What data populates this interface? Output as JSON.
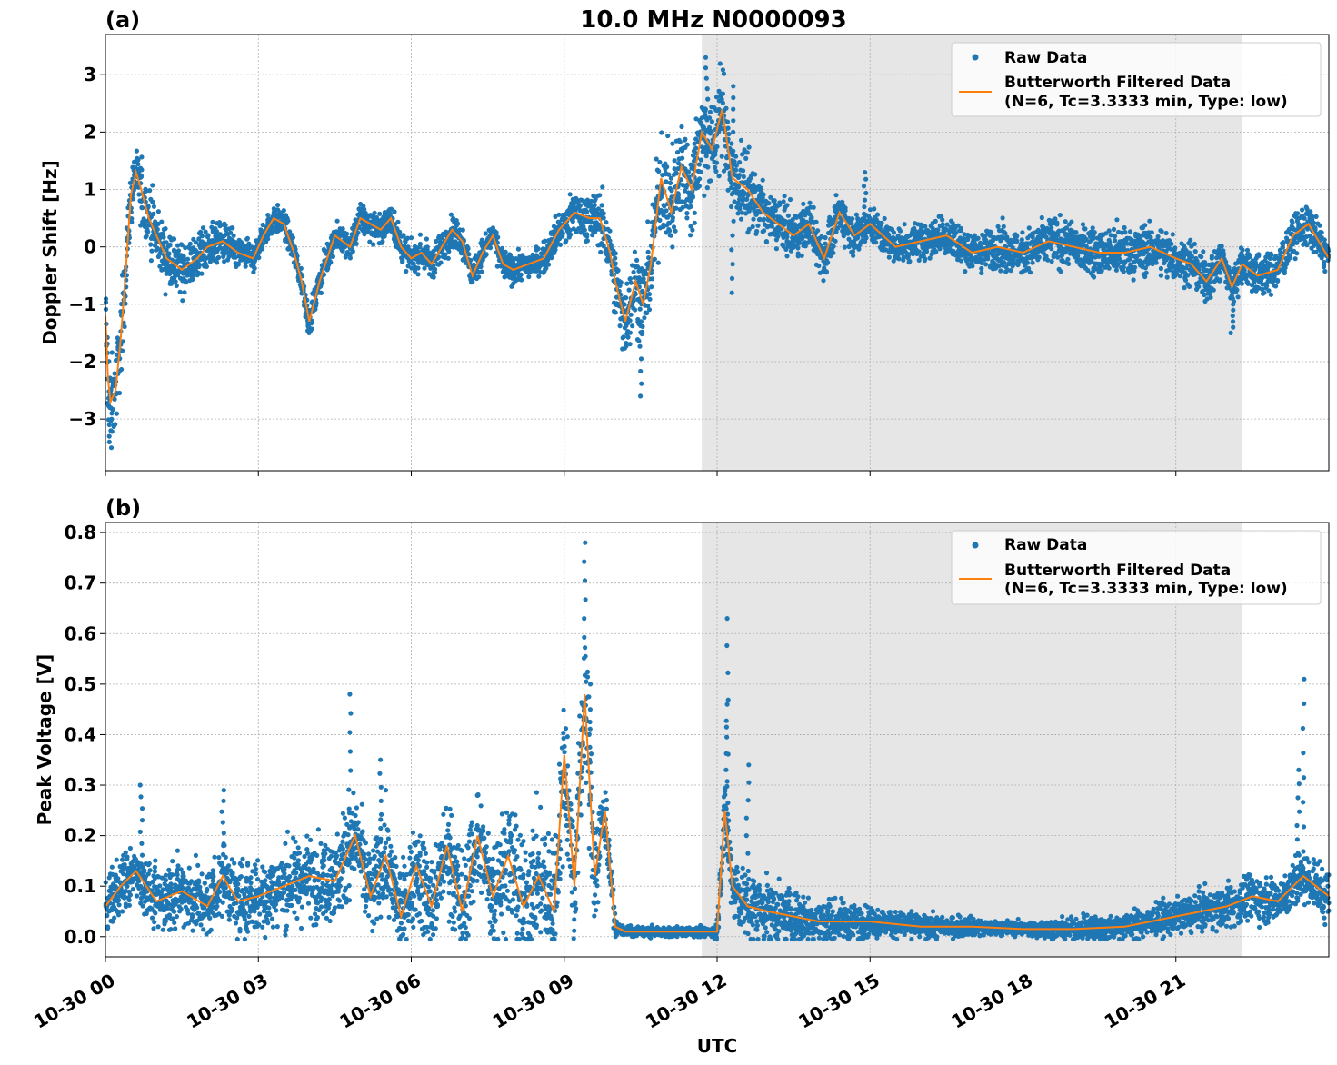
{
  "figure_title": "10.0 MHz N0000093",
  "colors": {
    "raw": "#1f77b4",
    "filtered": "#ff7f0e",
    "night_shade": "#e6e6e6"
  },
  "chart_data": [
    {
      "type": "scatter",
      "panel_label": "(a)",
      "ylabel": "Doppler Shift [Hz]",
      "xlabel": "",
      "xlim_hours": [
        0,
        24
      ],
      "ylim": [
        -3.9,
        3.7
      ],
      "yticks": [
        3,
        2,
        1,
        0,
        -1,
        -2,
        -3
      ],
      "ytick_labels": [
        "3",
        "2",
        "1",
        "0",
        "−1",
        "−2",
        "−3"
      ],
      "grid": true,
      "legend_placement": "upper right",
      "shaded_interval_hours": [
        11.7,
        22.3
      ],
      "legend": {
        "raw": "Raw Data",
        "filtered_line1": "Butterworth Filtered Data",
        "filtered_line2": "(N=6, Tc=3.3333 min, Type: low)"
      },
      "series": [
        {
          "name": "Butterworth Filtered Data",
          "kind": "line",
          "x": [
            0,
            0.05,
            0.1,
            0.2,
            0.3,
            0.4,
            0.5,
            0.6,
            0.7,
            0.85,
            1.0,
            1.2,
            1.5,
            1.8,
            2.0,
            2.3,
            2.6,
            2.9,
            3.1,
            3.3,
            3.5,
            3.7,
            3.85,
            4.0,
            4.2,
            4.5,
            4.8,
            5.0,
            5.2,
            5.4,
            5.6,
            5.8,
            6.0,
            6.2,
            6.4,
            6.6,
            6.8,
            7.0,
            7.2,
            7.4,
            7.6,
            7.8,
            8.0,
            8.3,
            8.6,
            8.9,
            9.0,
            9.2,
            9.5,
            9.7,
            9.9,
            10.0,
            10.2,
            10.4,
            10.55,
            10.7,
            10.9,
            11.1,
            11.3,
            11.5,
            11.7,
            11.9,
            12.1,
            12.3,
            12.6,
            12.9,
            13.2,
            13.5,
            13.8,
            14.1,
            14.4,
            14.7,
            15.0,
            15.5,
            16.0,
            16.5,
            17.0,
            17.5,
            18.0,
            18.5,
            19.0,
            19.5,
            20.0,
            20.5,
            21.0,
            21.3,
            21.6,
            21.9,
            22.1,
            22.3,
            22.6,
            23.0,
            23.3,
            23.6,
            24.0
          ],
          "y": [
            -1.2,
            -2.3,
            -2.7,
            -2.5,
            -1.6,
            -0.4,
            0.9,
            1.3,
            1.0,
            0.5,
            0.2,
            -0.2,
            -0.4,
            -0.2,
            0.0,
            0.1,
            -0.1,
            -0.2,
            0.2,
            0.5,
            0.4,
            -0.1,
            -0.6,
            -1.3,
            -0.6,
            0.2,
            0.0,
            0.5,
            0.4,
            0.3,
            0.5,
            0.0,
            -0.2,
            -0.1,
            -0.3,
            0.0,
            0.3,
            0.1,
            -0.5,
            -0.1,
            0.2,
            -0.3,
            -0.4,
            -0.3,
            -0.2,
            0.3,
            0.4,
            0.6,
            0.5,
            0.5,
            -0.1,
            -0.6,
            -1.3,
            -0.6,
            -1.0,
            -0.3,
            1.2,
            0.6,
            1.4,
            1.0,
            2.0,
            1.7,
            2.4,
            1.2,
            1.0,
            0.6,
            0.4,
            0.2,
            0.4,
            -0.2,
            0.6,
            0.2,
            0.4,
            0.0,
            0.1,
            0.2,
            -0.1,
            0.0,
            -0.1,
            0.1,
            0.0,
            -0.1,
            -0.1,
            0.0,
            -0.2,
            -0.3,
            -0.6,
            -0.2,
            -0.7,
            -0.3,
            -0.5,
            -0.4,
            0.2,
            0.4,
            -0.2
          ]
        },
        {
          "name": "Raw Data",
          "kind": "scatter",
          "spread": [
            [
              0,
              0.9
            ],
            [
              0.5,
              0.6
            ],
            [
              3.0,
              0.25
            ],
            [
              6.0,
              0.3
            ],
            [
              8.5,
              0.25
            ],
            [
              9.9,
              0.6
            ],
            [
              11.2,
              1.0
            ],
            [
              12.0,
              0.9
            ],
            [
              13.0,
              0.45
            ],
            [
              15.5,
              0.35
            ],
            [
              20.0,
              0.45
            ],
            [
              24.0,
              0.35
            ]
          ],
          "extreme_points": [
            [
              0.1,
              -3.5
            ],
            [
              4.0,
              -1.5
            ],
            [
              10.5,
              -2.6
            ],
            [
              11.8,
              3.3
            ],
            [
              12.3,
              2.8
            ],
            [
              12.3,
              -0.8
            ],
            [
              14.9,
              1.3
            ],
            [
              22.1,
              -1.5
            ]
          ]
        }
      ]
    },
    {
      "type": "scatter",
      "panel_label": "(b)",
      "ylabel": "Peak Voltage [V]",
      "xlabel": "UTC",
      "xlim_hours": [
        0,
        24
      ],
      "ylim": [
        -0.04,
        0.82
      ],
      "yticks": [
        0.8,
        0.7,
        0.6,
        0.5,
        0.4,
        0.3,
        0.2,
        0.1,
        0.0
      ],
      "ytick_labels": [
        "0.8",
        "0.7",
        "0.6",
        "0.5",
        "0.4",
        "0.3",
        "0.2",
        "0.1",
        "0.0"
      ],
      "grid": true,
      "legend_placement": "upper right",
      "shaded_interval_hours": [
        11.7,
        22.3
      ],
      "xtick_hours": [
        0,
        3,
        6,
        9,
        12,
        15,
        18,
        21
      ],
      "xtick_labels": [
        "10-30 00",
        "10-30 03",
        "10-30 06",
        "10-30 09",
        "10-30 12",
        "10-30 15",
        "10-30 18",
        "10-30 21"
      ],
      "legend": {
        "raw": "Raw Data",
        "filtered_line1": "Butterworth Filtered Data",
        "filtered_line2": "(N=6, Tc=3.3333 min, Type: low)"
      },
      "series": [
        {
          "name": "Butterworth Filtered Data",
          "kind": "line",
          "x": [
            0,
            0.3,
            0.6,
            1.0,
            1.5,
            2.0,
            2.3,
            2.6,
            3.0,
            3.5,
            4.0,
            4.5,
            4.9,
            5.2,
            5.5,
            5.8,
            6.1,
            6.4,
            6.7,
            7.0,
            7.3,
            7.6,
            7.9,
            8.2,
            8.5,
            8.8,
            9.0,
            9.2,
            9.4,
            9.6,
            9.8,
            10.0,
            10.2,
            10.5,
            11.0,
            11.5,
            12.0,
            12.15,
            12.3,
            12.6,
            13.0,
            13.5,
            14.0,
            14.5,
            15.0,
            16.0,
            17.0,
            18.0,
            19.0,
            20.0,
            21.0,
            22.0,
            22.5,
            23.0,
            23.5,
            24.0
          ],
          "y": [
            0.06,
            0.1,
            0.13,
            0.07,
            0.09,
            0.06,
            0.12,
            0.07,
            0.08,
            0.1,
            0.12,
            0.11,
            0.2,
            0.08,
            0.16,
            0.04,
            0.14,
            0.06,
            0.18,
            0.05,
            0.2,
            0.08,
            0.16,
            0.06,
            0.12,
            0.05,
            0.36,
            0.1,
            0.48,
            0.12,
            0.25,
            0.02,
            0.01,
            0.01,
            0.01,
            0.01,
            0.01,
            0.25,
            0.1,
            0.06,
            0.05,
            0.04,
            0.03,
            0.03,
            0.03,
            0.02,
            0.02,
            0.015,
            0.015,
            0.02,
            0.04,
            0.06,
            0.08,
            0.07,
            0.12,
            0.08
          ]
        },
        {
          "name": "Raw Data",
          "kind": "scatter",
          "spread": [
            [
              0,
              0.06
            ],
            [
              3.0,
              0.08
            ],
            [
              6.0,
              0.1
            ],
            [
              9.5,
              0.15
            ],
            [
              10.05,
              0.01
            ],
            [
              11.9,
              0.01
            ],
            [
              12.2,
              0.08
            ],
            [
              15.0,
              0.03
            ],
            [
              18.0,
              0.015
            ],
            [
              21.0,
              0.035
            ],
            [
              24.0,
              0.06
            ]
          ],
          "extreme_points": [
            [
              0.7,
              0.3
            ],
            [
              2.3,
              0.29
            ],
            [
              4.8,
              0.48
            ],
            [
              5.4,
              0.35
            ],
            [
              9.4,
              0.78
            ],
            [
              9.5,
              0.5
            ],
            [
              12.2,
              0.63
            ],
            [
              12.2,
              0.46
            ],
            [
              12.6,
              0.34
            ],
            [
              23.5,
              0.51
            ],
            [
              23.4,
              0.33
            ]
          ]
        }
      ]
    }
  ]
}
